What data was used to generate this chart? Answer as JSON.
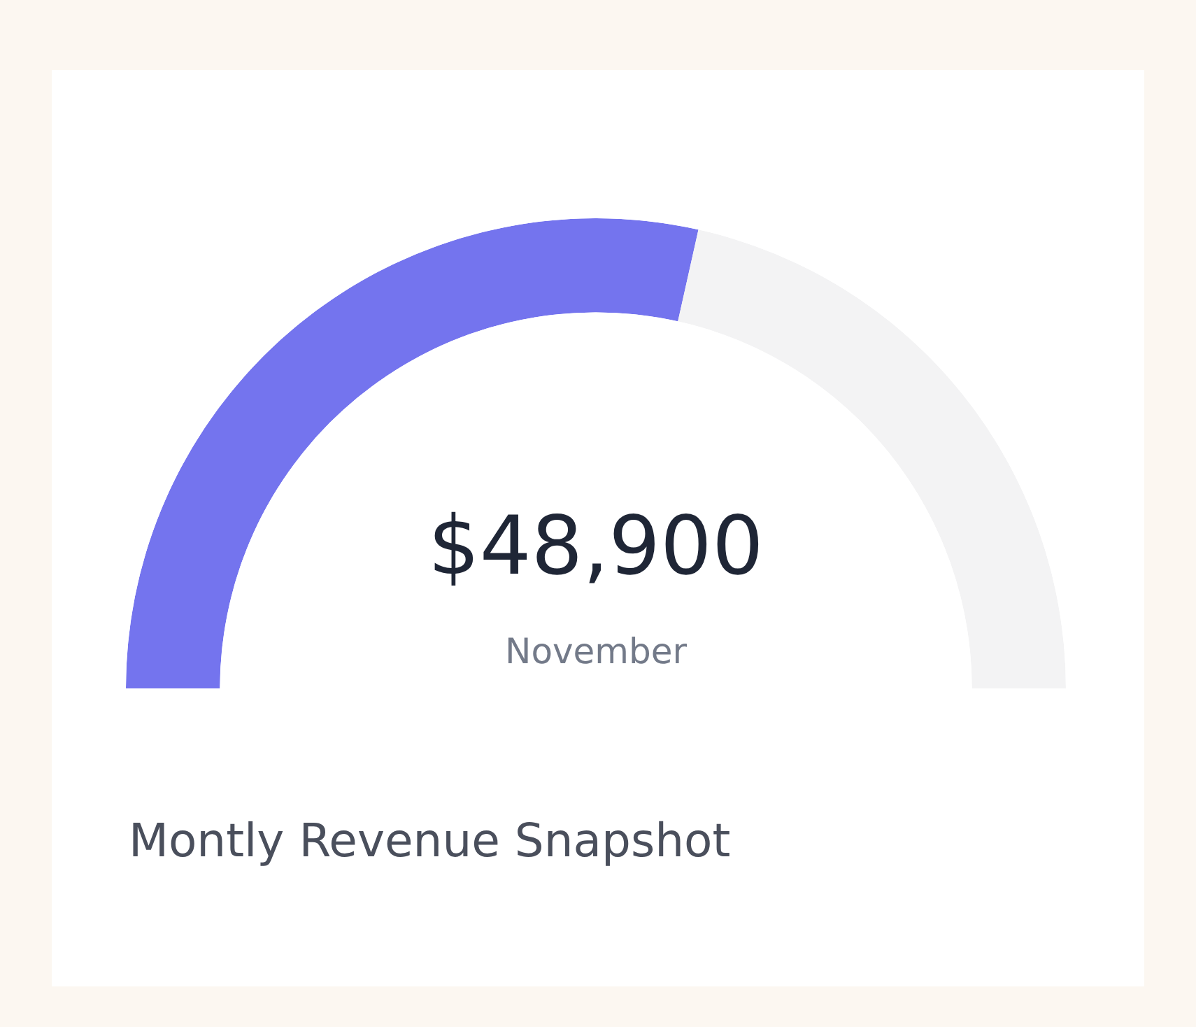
{
  "chart_data": {
    "type": "donut",
    "title": "Montly Revenue Snapshot",
    "categories": [
      null,
      null
    ],
    "values": [
      57,
      43
    ],
    "colors": [
      "#7474ee",
      "#f3f3f4"
    ],
    "annotations": [
      "$48,900",
      "November"
    ]
  }
}
